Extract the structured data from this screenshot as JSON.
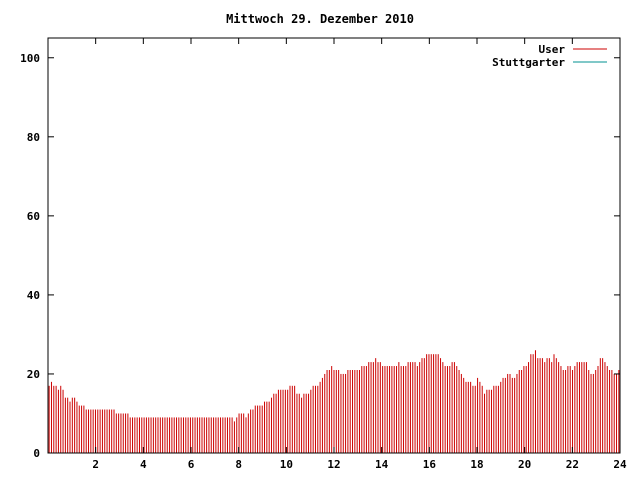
{
  "chart_data": {
    "type": "bar",
    "title": "Mittwoch 29. Dezember 2010",
    "xlim": [
      0,
      24
    ],
    "ylim": [
      0,
      105
    ],
    "xticks": [
      2,
      4,
      6,
      8,
      10,
      12,
      14,
      16,
      18,
      20,
      22,
      24
    ],
    "yticks": [
      0,
      20,
      40,
      60,
      80,
      100
    ],
    "grid": false,
    "legend_position": "top-right",
    "series": [
      {
        "name": "User",
        "color": "#cc0000",
        "values": [
          17,
          18,
          17,
          17,
          16,
          17,
          16,
          14,
          14,
          13,
          14,
          14,
          13,
          12,
          12,
          12,
          11,
          11,
          11,
          11,
          11,
          11,
          11,
          11,
          11,
          11,
          11,
          11,
          11,
          10,
          10,
          10,
          10,
          10,
          10,
          9,
          9,
          9,
          9,
          9,
          9,
          9,
          9,
          9,
          9,
          9,
          9,
          9,
          9,
          9,
          9,
          9,
          9,
          9,
          9,
          9,
          9,
          9,
          9,
          9,
          9,
          9,
          9,
          9,
          9,
          9,
          9,
          9,
          9,
          9,
          9,
          9,
          9,
          9,
          9,
          9,
          9,
          9,
          9,
          9,
          8,
          9,
          10,
          10,
          10,
          9,
          10,
          11,
          11,
          12,
          12,
          12,
          12,
          13,
          13,
          13,
          14,
          15,
          15,
          16,
          16,
          16,
          16,
          16,
          17,
          17,
          17,
          15,
          15,
          14,
          15,
          15,
          15,
          16,
          17,
          17,
          17,
          18,
          19,
          20,
          21,
          21,
          22,
          21,
          21,
          21,
          20,
          20,
          20,
          21,
          21,
          21,
          21,
          21,
          21,
          22,
          22,
          22,
          23,
          23,
          23,
          24,
          23,
          23,
          22,
          22,
          22,
          22,
          22,
          22,
          22,
          23,
          22,
          22,
          22,
          23,
          23,
          23,
          23,
          22,
          23,
          24,
          24,
          25,
          25,
          25,
          25,
          25,
          25,
          24,
          23,
          22,
          22,
          22,
          23,
          23,
          22,
          21,
          20,
          19,
          18,
          18,
          18,
          17,
          17,
          19,
          18,
          17,
          15,
          16,
          16,
          16,
          17,
          17,
          17,
          18,
          19,
          19,
          20,
          20,
          19,
          19,
          20,
          21,
          21,
          22,
          22,
          23,
          25,
          25,
          26,
          24,
          24,
          24,
          23,
          24,
          24,
          23,
          25,
          24,
          23,
          22,
          21,
          21,
          22,
          22,
          21,
          22,
          23,
          23,
          23,
          23,
          23,
          21,
          20,
          20,
          21,
          22,
          24,
          24,
          23,
          22,
          21,
          21,
          20,
          20,
          21
        ]
      },
      {
        "name": "Stuttgarter",
        "color": "#009090",
        "values": []
      }
    ]
  }
}
